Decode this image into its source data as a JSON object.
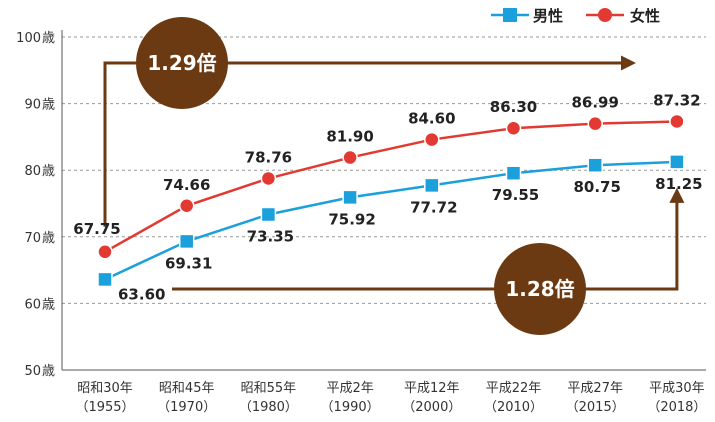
{
  "chart_data": {
    "type": "line",
    "ylim": [
      50,
      100
    ],
    "yticks": [
      50,
      60,
      70,
      80,
      90,
      100
    ],
    "y_unit": "歳",
    "grid": "horizontal-dashed",
    "legend_position": "top-right",
    "categories": [
      {
        "era": "昭和30年",
        "year": "（1955）"
      },
      {
        "era": "昭和45年",
        "year": "（1970）"
      },
      {
        "era": "昭和55年",
        "year": "（1980）"
      },
      {
        "era": "平成2年",
        "year": "（1990）"
      },
      {
        "era": "平成12年",
        "year": "（2000）"
      },
      {
        "era": "平成22年",
        "year": "（2010）"
      },
      {
        "era": "平成27年",
        "year": "（2015）"
      },
      {
        "era": "平成30年",
        "year": "（2018）"
      }
    ],
    "series": [
      {
        "name": "男性",
        "color": "#1ba0dc",
        "marker": "square",
        "values": [
          63.6,
          69.31,
          73.35,
          75.92,
          77.72,
          79.55,
          80.75,
          81.25
        ],
        "labels": [
          "63.60",
          "69.31",
          "73.35",
          "75.92",
          "77.72",
          "79.55",
          "80.75",
          "81.25"
        ]
      },
      {
        "name": "女性",
        "color": "#e23a32",
        "marker": "circle",
        "values": [
          67.75,
          74.66,
          78.76,
          81.9,
          84.6,
          86.3,
          86.99,
          87.32
        ],
        "labels": [
          "67.75",
          "74.66",
          "78.76",
          "81.90",
          "84.60",
          "86.30",
          "86.99",
          "87.32"
        ]
      }
    ],
    "annotations": [
      {
        "text": "1.29倍",
        "series": "女性"
      },
      {
        "text": "1.28倍",
        "series": "男性"
      }
    ],
    "annotation_color": "#6b3a12"
  }
}
